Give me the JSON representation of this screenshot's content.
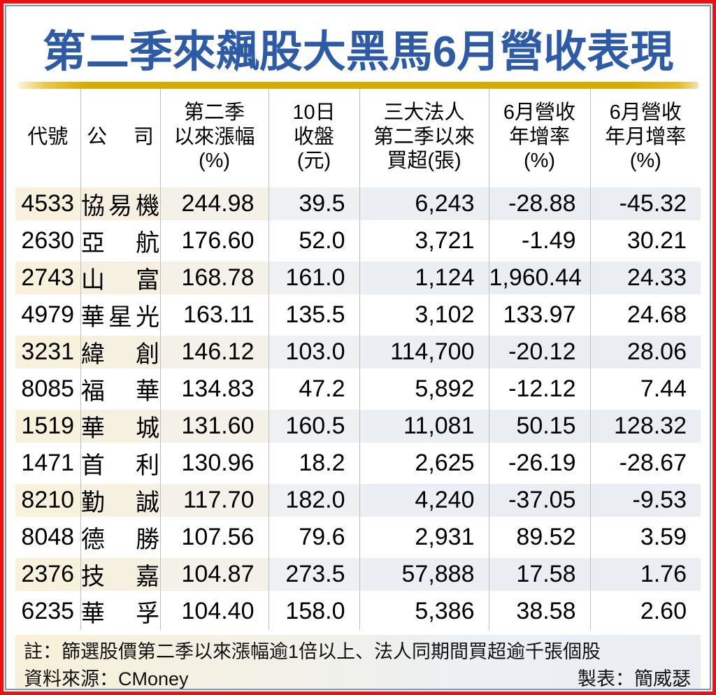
{
  "title": "第二季來飆股大黑馬6月營收表現",
  "colors": {
    "frame_red": "#ee1111",
    "inner_border_slate": "#8296af",
    "title_blue": "#2e5ba8",
    "gold_bar": "#d8ab00",
    "stripe_cream": "#f8f1db",
    "stripe_cool": "#eaeef3",
    "grid_line": "#bfbfbf"
  },
  "chart_data": {
    "type": "table",
    "title": "第二季來飆股大黑馬6月營收表現",
    "columns": [
      "代號",
      "公　司",
      "第二季\n以來漲幅\n(%)",
      "10日\n收盤\n(元)",
      "三大法人\n第二季以來\n買超(張)",
      "6月營收\n年增率\n(%)",
      "6月營收\n年月增率\n(%)"
    ],
    "rows": [
      {
        "code": "4533",
        "company": "協易機",
        "gain": "244.98",
        "close": "39.5",
        "net_buy": "6,243",
        "yoy": "-28.88",
        "mom": "-45.32"
      },
      {
        "code": "2630",
        "company": "亞　航",
        "gain": "176.60",
        "close": "52.0",
        "net_buy": "3,721",
        "yoy": "-1.49",
        "mom": "30.21"
      },
      {
        "code": "2743",
        "company": "山　富",
        "gain": "168.78",
        "close": "161.0",
        "net_buy": "1,124",
        "yoy": "1,960.44",
        "mom": "24.33"
      },
      {
        "code": "4979",
        "company": "華星光",
        "gain": "163.11",
        "close": "135.5",
        "net_buy": "3,102",
        "yoy": "133.97",
        "mom": "24.68"
      },
      {
        "code": "3231",
        "company": "緯　創",
        "gain": "146.12",
        "close": "103.0",
        "net_buy": "114,700",
        "yoy": "-20.12",
        "mom": "28.06"
      },
      {
        "code": "8085",
        "company": "福　華",
        "gain": "134.83",
        "close": "47.2",
        "net_buy": "5,892",
        "yoy": "-12.12",
        "mom": "7.44"
      },
      {
        "code": "1519",
        "company": "華　城",
        "gain": "131.60",
        "close": "160.5",
        "net_buy": "11,081",
        "yoy": "50.15",
        "mom": "128.32"
      },
      {
        "code": "1471",
        "company": "首　利",
        "gain": "130.96",
        "close": "18.2",
        "net_buy": "2,625",
        "yoy": "-26.19",
        "mom": "-28.67"
      },
      {
        "code": "8210",
        "company": "勤　誠",
        "gain": "117.70",
        "close": "182.0",
        "net_buy": "4,240",
        "yoy": "-37.05",
        "mom": "-9.53"
      },
      {
        "code": "8048",
        "company": "德　勝",
        "gain": "107.56",
        "close": "79.6",
        "net_buy": "2,931",
        "yoy": "89.52",
        "mom": "3.59"
      },
      {
        "code": "2376",
        "company": "技　嘉",
        "gain": "104.87",
        "close": "273.5",
        "net_buy": "57,888",
        "yoy": "17.58",
        "mom": "1.76"
      },
      {
        "code": "6235",
        "company": "華　孚",
        "gain": "104.40",
        "close": "158.0",
        "net_buy": "5,386",
        "yoy": "38.58",
        "mom": "2.60"
      }
    ]
  },
  "footer": {
    "note": "註：篩選股價第二季以來漲幅逾1倍以上、法人同期間買超逾千張個股",
    "source": "資料來源：CMoney",
    "credit": "製表：簡威瑟"
  }
}
